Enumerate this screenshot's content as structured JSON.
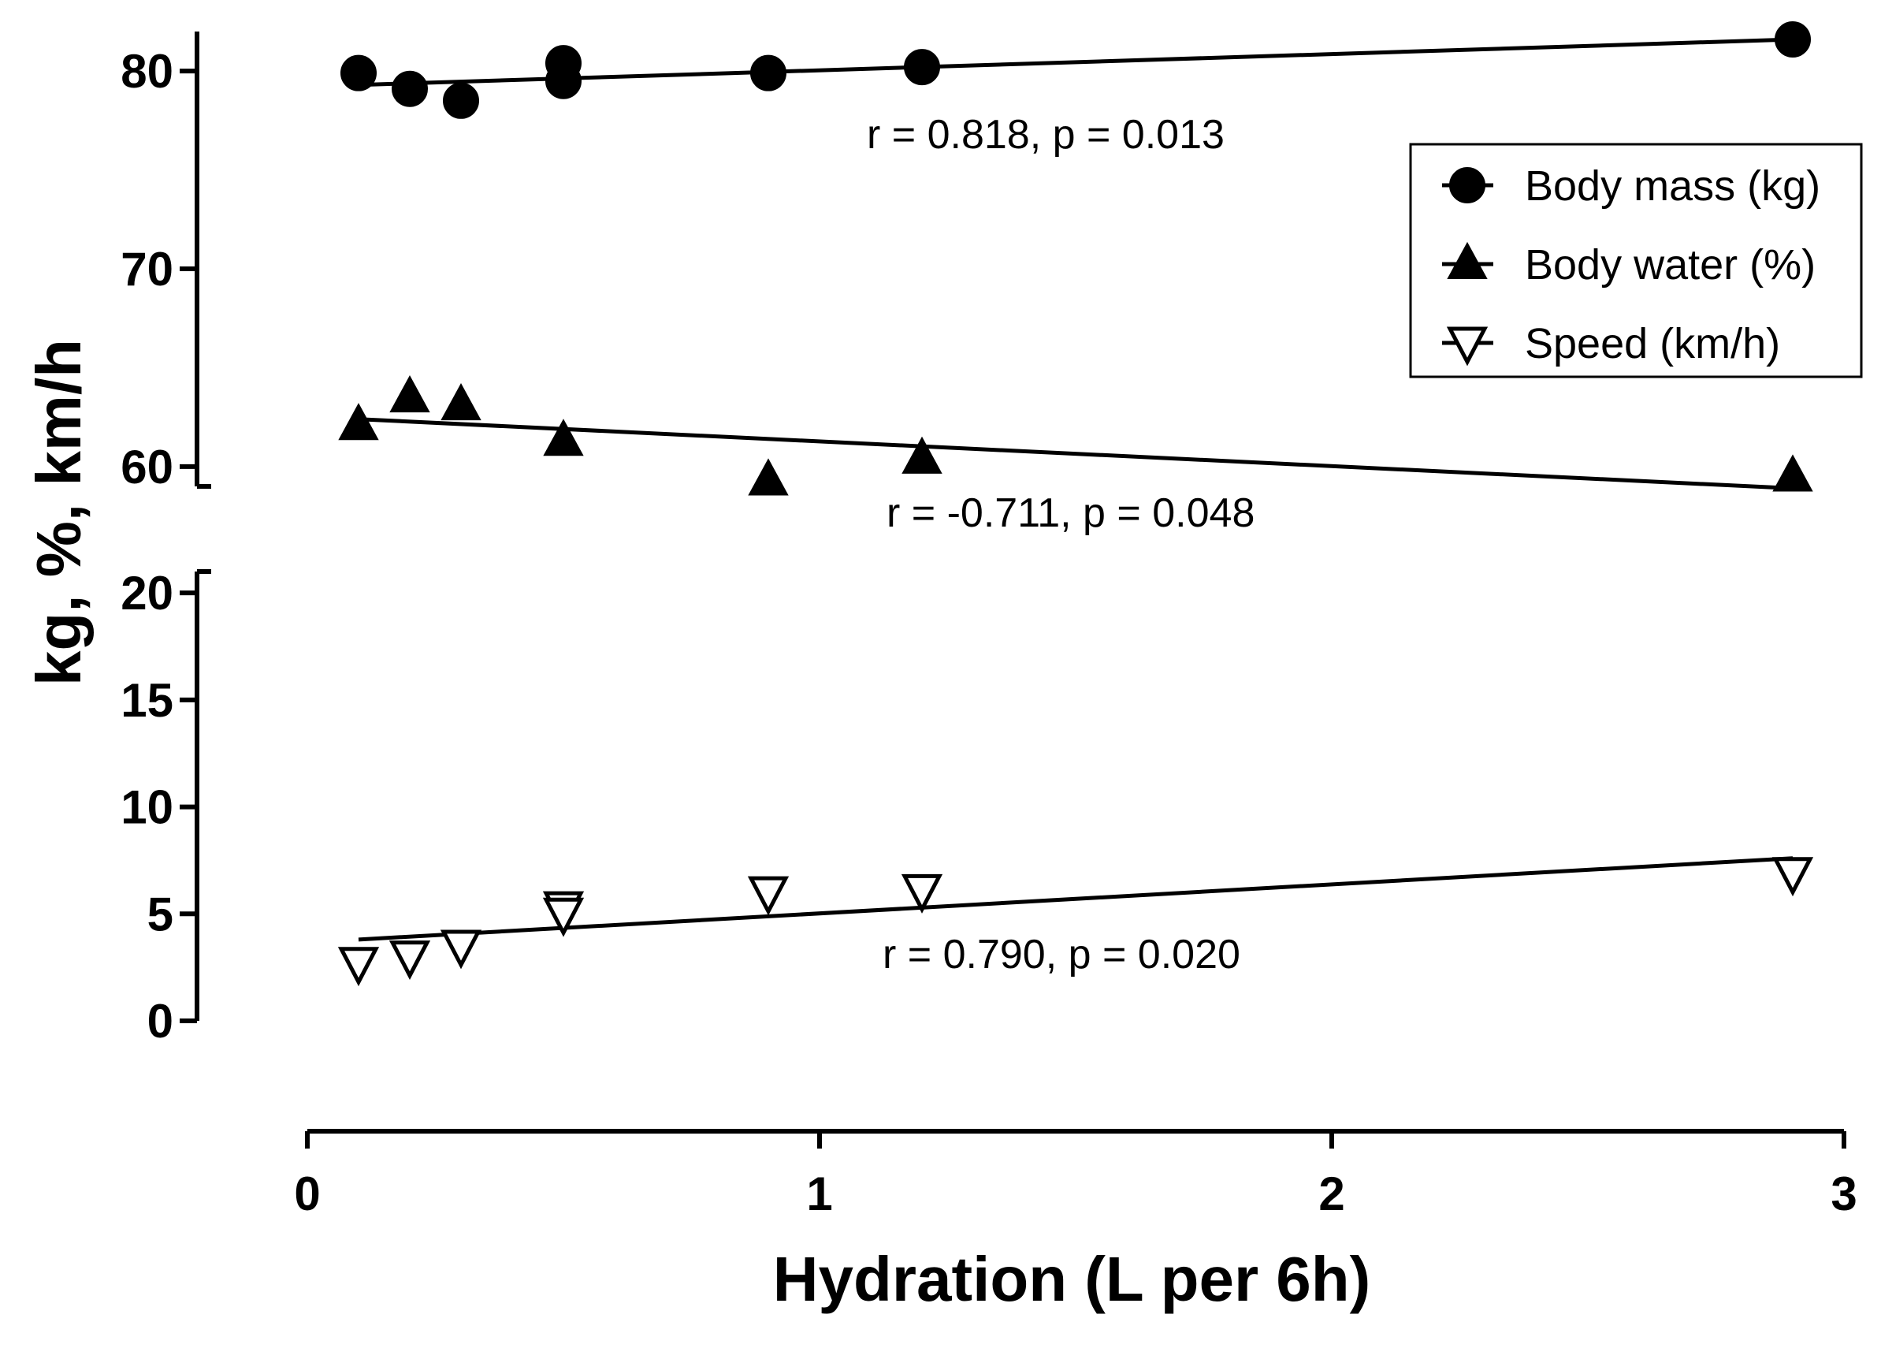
{
  "chart_data": {
    "type": "scatter",
    "title": "",
    "xlabel": "Hydration (L per 6h)",
    "ylabel": "kg, %, km/h",
    "xlim": [
      0,
      3
    ],
    "x_ticks": [
      0,
      1,
      2,
      3
    ],
    "x_tick_labels": [
      "0",
      "1",
      "2",
      "3"
    ],
    "y_segments": [
      {
        "name": "upper",
        "ylim": [
          59,
          82
        ],
        "ticks": [
          60,
          70,
          80
        ],
        "tick_labels": [
          "60",
          "70",
          "80"
        ]
      },
      {
        "name": "lower",
        "ylim": [
          0,
          21
        ],
        "ticks": [
          0,
          5,
          10,
          15,
          20
        ],
        "tick_labels": [
          "0",
          "5",
          "10",
          "15",
          "20"
        ]
      }
    ],
    "series": [
      {
        "name": "Body mass (kg)",
        "marker": "filled-circle",
        "segment": "upper",
        "x": [
          0.1,
          0.2,
          0.3,
          0.5,
          0.5,
          0.9,
          1.2,
          2.9
        ],
        "y": [
          79.9,
          79.1,
          78.5,
          80.4,
          79.5,
          79.9,
          80.2,
          81.6
        ],
        "fit": {
          "x": [
            0.1,
            2.9
          ],
          "y": [
            79.3,
            81.6
          ]
        },
        "annotation": "r = 0.818, p = 0.013"
      },
      {
        "name": "Body water (%)",
        "marker": "filled-triangle-up",
        "segment": "upper",
        "x": [
          0.1,
          0.2,
          0.3,
          0.5,
          0.9,
          1.2,
          2.9
        ],
        "y": [
          62.1,
          63.5,
          63.1,
          61.3,
          59.3,
          60.4,
          59.5
        ],
        "fit": {
          "x": [
            0.1,
            2.9
          ],
          "y": [
            62.4,
            58.9
          ]
        },
        "annotation": "r = -0.711, p = 0.048"
      },
      {
        "name": "Speed (km/h)",
        "marker": "open-triangle-down",
        "segment": "lower",
        "x": [
          0.1,
          0.2,
          0.3,
          0.5,
          0.5,
          0.9,
          1.2,
          2.9
        ],
        "y": [
          2.7,
          3.0,
          3.5,
          5.3,
          5.0,
          6.0,
          6.1,
          6.9
        ],
        "fit": {
          "x": [
            0.1,
            2.9
          ],
          "y": [
            3.8,
            7.6
          ]
        },
        "annotation": "r = 0.790, p = 0.020"
      }
    ],
    "legend": {
      "position": "top-right",
      "entries": [
        "Body mass (kg)",
        "Body water (%)",
        "Speed (km/h)"
      ]
    }
  }
}
